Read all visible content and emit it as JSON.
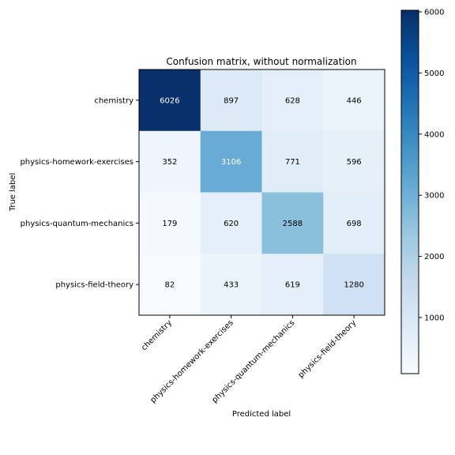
{
  "chart_data": {
    "type": "heatmap",
    "title": "Confusion matrix, without normalization",
    "xlabel": "Predicted label",
    "ylabel": "True label",
    "x_categories": [
      "chemistry",
      "physics-homework-exercises",
      "physics-quantum-mechanics",
      "physics-field-theory"
    ],
    "y_categories": [
      "chemistry",
      "physics-homework-exercises",
      "physics-quantum-mechanics",
      "physics-field-theory"
    ],
    "values": [
      [
        6026,
        897,
        628,
        446
      ],
      [
        352,
        3106,
        771,
        596
      ],
      [
        179,
        620,
        2588,
        698
      ],
      [
        82,
        433,
        619,
        1280
      ]
    ],
    "colormap": "Blues",
    "colorbar": {
      "range": [
        82,
        6026
      ],
      "ticks": [
        1000,
        2000,
        3000,
        4000,
        5000,
        6000
      ],
      "tick_labels": [
        "1000",
        "2000",
        "3000",
        "4000",
        "5000",
        "6000"
      ]
    }
  }
}
